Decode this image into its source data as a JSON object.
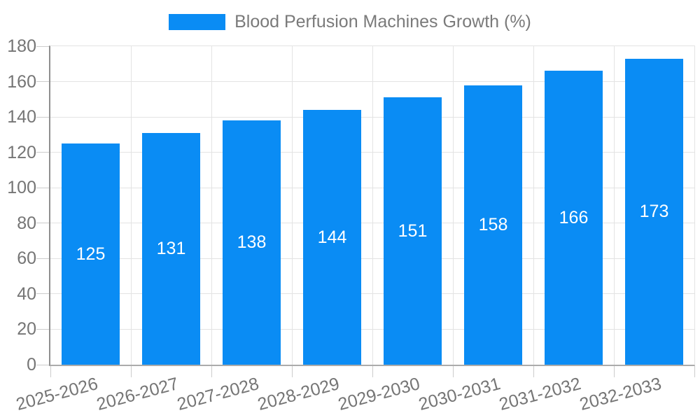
{
  "chart_data": {
    "type": "bar",
    "title": "Blood Perfusion Machines Growth (%)",
    "categories": [
      "2025-2026",
      "2026-2027",
      "2027-2028",
      "2028-2029",
      "2029-2030",
      "2030-2031",
      "2031-2032",
      "2032-2033"
    ],
    "values": [
      125,
      131,
      138,
      144,
      151,
      158,
      166,
      173
    ],
    "ylabel": "",
    "xlabel": "",
    "ylim": [
      0,
      180
    ],
    "ytick_step": 20,
    "grid": true,
    "legend_position": "top-center",
    "bar_color": "#0a8cf4",
    "value_label_color": "#ffffff",
    "axis_text_color": "#757575",
    "grid_color": "#e3e3e3"
  }
}
